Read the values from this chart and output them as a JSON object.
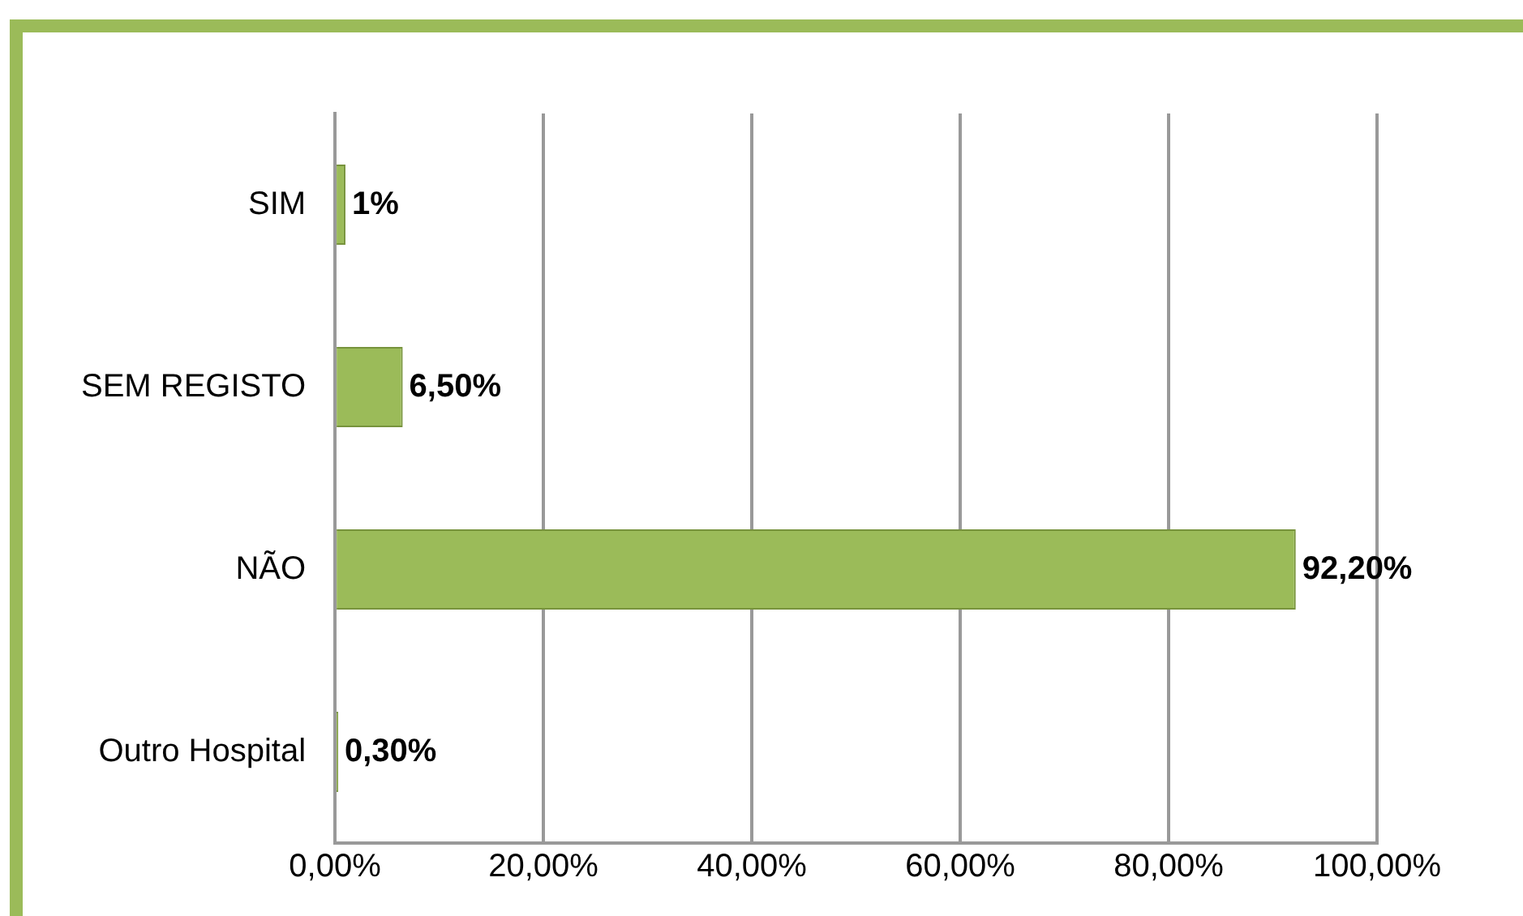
{
  "chart_data": {
    "type": "bar",
    "orientation": "horizontal",
    "categories": [
      "SIM",
      "SEM REGISTO",
      "NÃO",
      "Outro Hospital"
    ],
    "values": [
      1,
      6.5,
      92.2,
      0.3
    ],
    "value_labels": [
      "1%",
      "6,50%",
      "92,20%",
      "0,30%"
    ],
    "color": "#9bbb59",
    "xlim": [
      0,
      100
    ],
    "xticks": [
      {
        "value": 0,
        "label": "0,00%"
      },
      {
        "value": 20,
        "label": "20,00%"
      },
      {
        "value": 40,
        "label": "40,00%"
      },
      {
        "value": 60,
        "label": "60,00%"
      },
      {
        "value": 80,
        "label": "80,00%"
      },
      {
        "value": 100,
        "label": "100,00%"
      }
    ],
    "grid": "x",
    "legend": false
  }
}
